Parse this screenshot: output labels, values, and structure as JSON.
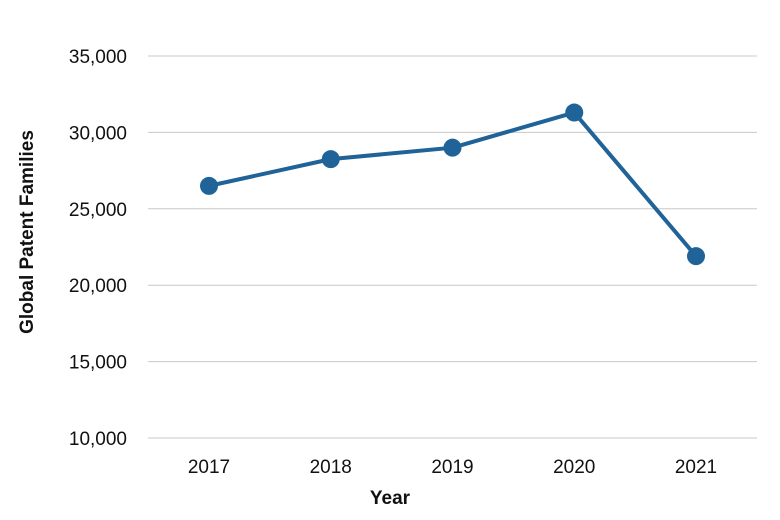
{
  "chart_data": {
    "type": "line",
    "title": "",
    "xlabel": "Year",
    "ylabel": "Global Patent Families",
    "categories": [
      "2017",
      "2018",
      "2019",
      "2020",
      "2021"
    ],
    "series": [
      {
        "values": [
          26500,
          28250,
          29000,
          31300,
          21900
        ]
      }
    ],
    "ylim": [
      10000,
      35000
    ],
    "yticks": [
      10000,
      15000,
      20000,
      25000,
      30000,
      35000
    ],
    "ytick_labels": [
      "10,000",
      "15,000",
      "20,000",
      "25,000",
      "30,000",
      "35,000"
    ],
    "grid": true,
    "legend": "none",
    "colors": {
      "series": "#1f6398",
      "grid": "#c8c8c8",
      "text": "#111111"
    }
  }
}
